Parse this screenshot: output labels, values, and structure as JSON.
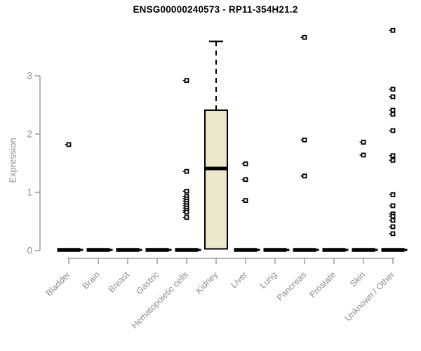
{
  "title": "ENSG00000240573 - RP11-354H21.2",
  "axes": {
    "y_label": "Expression",
    "y_ticks": [
      0,
      1,
      2,
      3
    ],
    "x_label_rotation_deg": 45
  },
  "colors": {
    "background": "#FFFFFF",
    "title_text": "#000000",
    "axis_line": "#8C8C8C",
    "tick_text": "#8C8C8C",
    "box_fill": "#ECE7CD",
    "box_border": "#000000",
    "median_line": "#000000",
    "outlier_marker": "#000000"
  },
  "chart_data": {
    "type": "boxplot",
    "title": "ENSG00000240573 - RP11-354H21.2",
    "xlabel": "",
    "ylabel": "Expression",
    "ylim": [
      0,
      3.8
    ],
    "grid": false,
    "legend": false,
    "categories": [
      "Bladder",
      "Brain",
      "Breast",
      "Gastric",
      "Hematopoietic cells",
      "Kidney",
      "Liver",
      "Lung",
      "Pancreas",
      "Prostate",
      "Skin",
      "Unknown / Other"
    ],
    "series": [
      {
        "category": "Bladder",
        "q1": 0,
        "median": 0,
        "q3": 0,
        "whisker_low": 0,
        "whisker_high": 0,
        "outliers": [
          1.82
        ]
      },
      {
        "category": "Brain",
        "q1": 0,
        "median": 0,
        "q3": 0,
        "whisker_low": 0,
        "whisker_high": 0,
        "outliers": []
      },
      {
        "category": "Breast",
        "q1": 0,
        "median": 0,
        "q3": 0,
        "whisker_low": 0,
        "whisker_high": 0,
        "outliers": []
      },
      {
        "category": "Gastric",
        "q1": 0,
        "median": 0,
        "q3": 0,
        "whisker_low": 0,
        "whisker_high": 0,
        "outliers": []
      },
      {
        "category": "Hematopoietic cells",
        "q1": 0,
        "median": 0,
        "q3": 0,
        "whisker_low": 0,
        "whisker_high": 0,
        "outliers": [
          2.92,
          1.36,
          1.02,
          0.93,
          0.89,
          0.85,
          0.81,
          0.77,
          0.73,
          0.69,
          0.66,
          0.57
        ]
      },
      {
        "category": "Kidney",
        "q1": 0.03,
        "median": 1.41,
        "q3": 2.41,
        "whisker_low": 0.03,
        "whisker_high": 3.59,
        "outliers": []
      },
      {
        "category": "Liver",
        "q1": 0,
        "median": 0,
        "q3": 0,
        "whisker_low": 0,
        "whisker_high": 0,
        "outliers": [
          1.49,
          1.22,
          0.86
        ]
      },
      {
        "category": "Lung",
        "q1": 0,
        "median": 0,
        "q3": 0,
        "whisker_low": 0,
        "whisker_high": 0,
        "outliers": []
      },
      {
        "category": "Pancreas",
        "q1": 0,
        "median": 0,
        "q3": 0,
        "whisker_low": 0,
        "whisker_high": 0,
        "outliers": [
          3.66,
          1.9,
          1.28
        ]
      },
      {
        "category": "Prostate",
        "q1": 0,
        "median": 0,
        "q3": 0,
        "whisker_low": 0,
        "whisker_high": 0,
        "outliers": []
      },
      {
        "category": "Skin",
        "q1": 0,
        "median": 0,
        "q3": 0,
        "whisker_low": 0,
        "whisker_high": 0,
        "outliers": [
          1.86,
          1.64
        ]
      },
      {
        "category": "Unknown / Other",
        "q1": 0,
        "median": 0,
        "q3": 0,
        "whisker_low": 0,
        "whisker_high": 0,
        "outliers": [
          3.78,
          2.77,
          2.64,
          2.41,
          2.34,
          2.06,
          1.63,
          1.55,
          0.96,
          0.77,
          0.63,
          0.59,
          0.52,
          0.41,
          0.29
        ]
      }
    ]
  }
}
